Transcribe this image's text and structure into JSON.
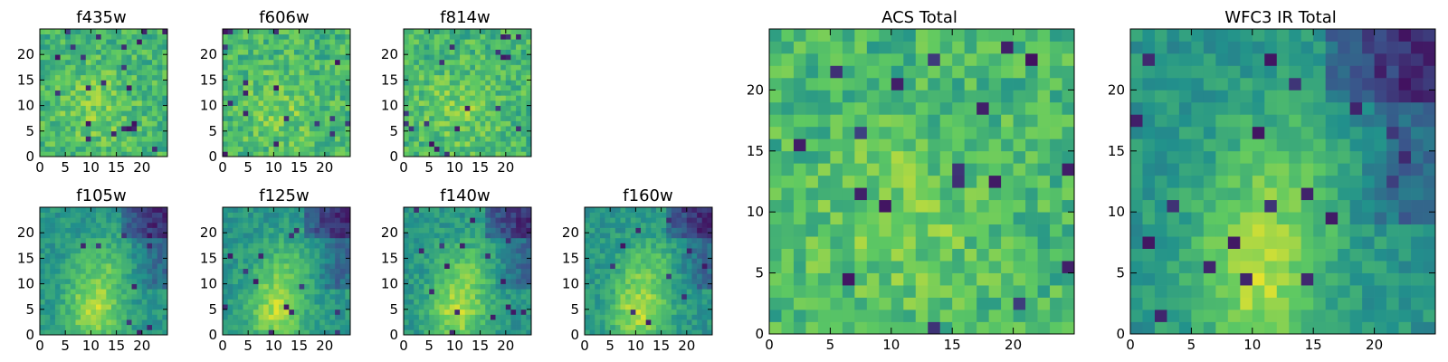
{
  "chart_data": {
    "type": "heatmap",
    "colormap": [
      "#440154",
      "#3b528b",
      "#21918c",
      "#5ec962",
      "#fde725"
    ],
    "grid_size": 25,
    "panels": [
      {
        "id": "f435w",
        "title": "f435w",
        "pattern": "noise_acs",
        "xticks": [
          0,
          5,
          10,
          15,
          20
        ],
        "yticks": [
          0,
          5,
          10,
          15,
          20
        ],
        "xlim": [
          0,
          25
        ],
        "ylim": [
          0,
          25
        ]
      },
      {
        "id": "f606w",
        "title": "f606w",
        "pattern": "noise_acs",
        "xticks": [
          0,
          5,
          10,
          15,
          20
        ],
        "yticks": [
          0,
          5,
          10,
          15,
          20
        ],
        "xlim": [
          0,
          25
        ],
        "ylim": [
          0,
          25
        ]
      },
      {
        "id": "f814w",
        "title": "f814w",
        "pattern": "noise_acs",
        "xticks": [
          0,
          5,
          10,
          15,
          20
        ],
        "yticks": [
          0,
          5,
          10,
          15,
          20
        ],
        "xlim": [
          0,
          25
        ],
        "ylim": [
          0,
          25
        ]
      },
      {
        "id": "f105w",
        "title": "f105w",
        "pattern": "smooth_ir",
        "xticks": [
          0,
          5,
          10,
          15,
          20
        ],
        "yticks": [
          0,
          5,
          10,
          15,
          20
        ],
        "xlim": [
          0,
          25
        ],
        "ylim": [
          0,
          25
        ]
      },
      {
        "id": "f125w",
        "title": "f125w",
        "pattern": "smooth_ir",
        "xticks": [
          0,
          5,
          10,
          15,
          20
        ],
        "yticks": [
          0,
          5,
          10,
          15,
          20
        ],
        "xlim": [
          0,
          25
        ],
        "ylim": [
          0,
          25
        ]
      },
      {
        "id": "f140w",
        "title": "f140w",
        "pattern": "smooth_ir",
        "xticks": [
          0,
          5,
          10,
          15,
          20
        ],
        "yticks": [
          0,
          5,
          10,
          15,
          20
        ],
        "xlim": [
          0,
          25
        ],
        "ylim": [
          0,
          25
        ]
      },
      {
        "id": "f160w",
        "title": "f160w",
        "pattern": "smooth_ir",
        "xticks": [
          0,
          5,
          10,
          15,
          20
        ],
        "yticks": [
          0,
          5,
          10,
          15,
          20
        ],
        "xlim": [
          0,
          25
        ],
        "ylim": [
          0,
          25
        ]
      },
      {
        "id": "acs-total",
        "title": "ACS Total",
        "pattern": "noise_acs",
        "xticks": [
          0,
          5,
          10,
          15,
          20
        ],
        "yticks": [
          0,
          5,
          10,
          15,
          20
        ],
        "xlim": [
          0,
          25
        ],
        "ylim": [
          0,
          25
        ]
      },
      {
        "id": "wfc3-ir-total",
        "title": "WFC3 IR Total",
        "pattern": "smooth_ir",
        "xticks": [
          0,
          5,
          10,
          15,
          20
        ],
        "yticks": [
          0,
          5,
          10,
          15,
          20
        ],
        "xlim": [
          0,
          25
        ],
        "ylim": [
          0,
          25
        ]
      }
    ]
  }
}
